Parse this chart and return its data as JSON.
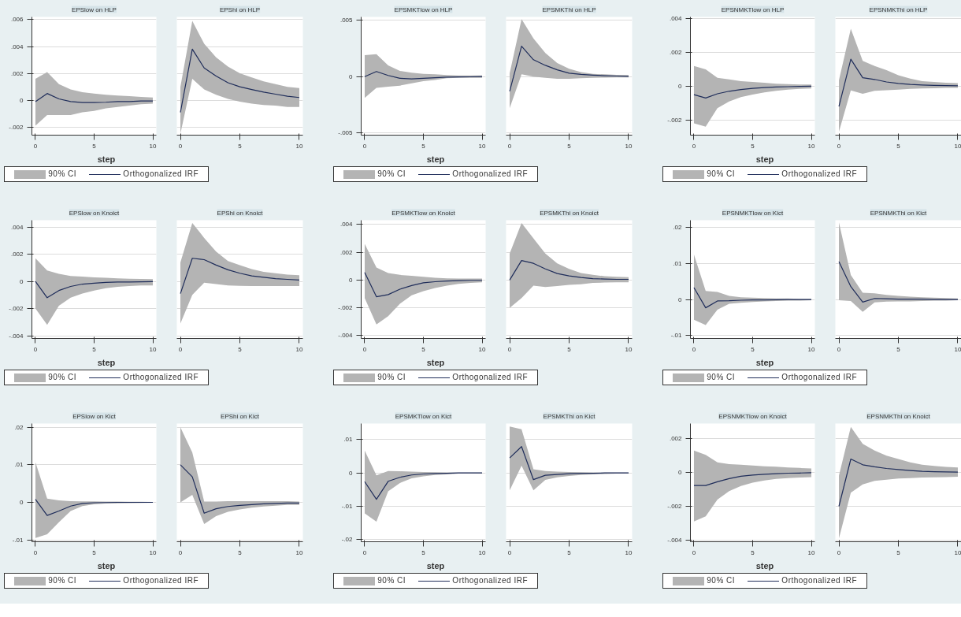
{
  "chart_data": [
    {
      "type": "line",
      "title": "EPSlow on HLP",
      "xlabel": "step",
      "legend": "bottom",
      "annotations": [
        "90% CI"
      ],
      "grid": "y",
      "x": [
        0,
        1,
        2,
        3,
        4,
        5,
        6,
        7,
        8,
        9,
        10
      ],
      "xlim": [
        -0.3,
        10.3
      ],
      "xticks": [
        0,
        5,
        10
      ],
      "ylim": [
        -0.0026,
        0.0062
      ],
      "yticks": [
        {
          "value": -0.002,
          "label": "-.002"
        },
        0,
        {
          "value": 0.002,
          "label": ".002"
        },
        {
          "value": 0.004,
          "label": ".004"
        },
        {
          "value": 0.006,
          "label": ".006"
        }
      ],
      "series": [
        {
          "name": "Orthogonalized IRF",
          "color": "#1f2d5a",
          "values": [
            -0.0001,
            0.0005,
            0.0001,
            -0.0001,
            -0.00017,
            -0.00017,
            -0.00015,
            -0.0001,
            -0.0001,
            -5e-05,
            -5e-05
          ],
          "lower": [
            -0.0019,
            -0.0011,
            -0.0011,
            -0.0011,
            -0.0009,
            -0.0008,
            -0.0006,
            -0.0005,
            -0.0004,
            -0.0003,
            -0.00025
          ],
          "upper": [
            0.0016,
            0.0021,
            0.0012,
            0.0008,
            0.0006,
            0.0005,
            0.0004,
            0.00035,
            0.0003,
            0.00025,
            0.0002
          ]
        }
      ]
    },
    {
      "type": "line",
      "title": "EPShi on HLP",
      "tick_labels": "x",
      "grid": "y",
      "x": [
        0,
        1,
        2,
        3,
        4,
        5,
        6,
        7,
        8,
        9,
        10
      ],
      "xlim": [
        -0.3,
        10.3
      ],
      "xticks": [
        0,
        5,
        10
      ],
      "ylim": [
        -0.0026,
        0.0062
      ],
      "yticks": [
        -0.002,
        0,
        0.002,
        0.004,
        0.006
      ],
      "series": [
        {
          "color": "#1f2d5a",
          "values": [
            -0.0009,
            0.0038,
            0.0024,
            0.0018,
            0.0013,
            0.001,
            0.0008,
            0.0006,
            0.00045,
            0.0003,
            0.0002
          ],
          "lower": [
            -0.0025,
            0.0016,
            0.0008,
            0.0004,
            0.0001,
            -0.0001,
            -0.00025,
            -0.00035,
            -0.0004,
            -0.0005,
            -0.0005
          ],
          "upper": [
            0.001,
            0.0059,
            0.0042,
            0.0032,
            0.0025,
            0.002,
            0.0017,
            0.0014,
            0.0012,
            0.001,
            0.0009
          ]
        }
      ]
    },
    {
      "type": "line",
      "title": "EPSMKTlow on HLP",
      "xlabel": "step",
      "legend": "bottom",
      "annotations": [
        "90% CI"
      ],
      "grid": "y",
      "x": [
        0,
        1,
        2,
        3,
        4,
        5,
        6,
        7,
        8,
        9,
        10
      ],
      "xlim": [
        -0.3,
        10.3
      ],
      "xticks": [
        0,
        5,
        10
      ],
      "ylim": [
        -0.0052,
        0.0053
      ],
      "yticks": [
        {
          "value": -0.005,
          "label": "-.005"
        },
        0,
        {
          "value": 0.005,
          "label": ".005"
        }
      ],
      "series": [
        {
          "name": "Orthogonalized IRF",
          "color": "#1f2d5a",
          "values": [
            0,
            0.00045,
            0.0001,
            -0.00015,
            -0.0002,
            -0.00015,
            -0.0001,
            -5e-05,
            -3e-05,
            -2e-05,
            0
          ],
          "lower": [
            -0.0019,
            -0.001,
            -0.0009,
            -0.0008,
            -0.0006,
            -0.0004,
            -0.0003,
            -0.00015,
            -0.0001,
            -0.0001,
            -0.0001
          ],
          "upper": [
            0.0019,
            0.002,
            0.001,
            0.0005,
            0.00035,
            0.00025,
            0.0002,
            0.00013,
            0.0001,
            0.0001,
            0.0001
          ]
        }
      ]
    },
    {
      "type": "line",
      "title": "EPSMKThi on HLP",
      "tick_labels": "x",
      "grid": "y",
      "x": [
        0,
        1,
        2,
        3,
        4,
        5,
        6,
        7,
        8,
        9,
        10
      ],
      "xlim": [
        -0.3,
        10.3
      ],
      "xticks": [
        0,
        5,
        10
      ],
      "ylim": [
        -0.0052,
        0.0053
      ],
      "yticks": [
        -0.005,
        0,
        0.005
      ],
      "series": [
        {
          "color": "#1f2d5a",
          "values": [
            -0.0013,
            0.0027,
            0.0015,
            0.001,
            0.0006,
            0.0003,
            0.0002,
            0.00013,
            8e-05,
            5e-05,
            3e-05
          ],
          "lower": [
            -0.0028,
            0.0002,
            0,
            -0.0001,
            -0.0002,
            -0.0002,
            -0.00015,
            -0.0001,
            -9e-05,
            -8e-05,
            -7e-05
          ],
          "upper": [
            0.0003,
            0.0051,
            0.0034,
            0.0021,
            0.0012,
            0.0007,
            0.0004,
            0.00025,
            0.0002,
            0.00015,
            0.00013
          ]
        }
      ]
    },
    {
      "type": "line",
      "title": "EPSNMKTlow on HLP",
      "xlabel": "step",
      "legend": "bottom",
      "annotations": [
        "90% CI"
      ],
      "grid": "y",
      "x": [
        0,
        1,
        2,
        3,
        4,
        5,
        6,
        7,
        8,
        9,
        10
      ],
      "xlim": [
        -0.3,
        10.3
      ],
      "xticks": [
        0,
        5,
        10
      ],
      "ylim": [
        -0.0029,
        0.0041
      ],
      "yticks": [
        {
          "value": -0.002,
          "label": "-.002"
        },
        0,
        {
          "value": 0.002,
          "label": ".002"
        },
        {
          "value": 0.004,
          "label": ".004"
        }
      ],
      "series": [
        {
          "name": "Orthogonalized IRF",
          "color": "#1f2d5a",
          "values": [
            -0.0005,
            -0.0007,
            -0.00045,
            -0.0003,
            -0.0002,
            -0.00013,
            -8e-05,
            -5e-05,
            -3e-05,
            -1e-05,
            0
          ],
          "lower": [
            -0.0022,
            -0.0024,
            -0.0013,
            -0.0009,
            -0.00065,
            -0.0005,
            -0.00037,
            -0.00028,
            -0.0002,
            -0.00016,
            -0.00013
          ],
          "upper": [
            0.0012,
            0.001,
            0.0005,
            0.0004,
            0.0003,
            0.00025,
            0.0002,
            0.00015,
            0.00012,
            0.0001,
            0.0001
          ]
        }
      ]
    },
    {
      "type": "line",
      "title": "EPSNMKThi on HLP",
      "tick_labels": "x",
      "grid": "y",
      "x": [
        0,
        1,
        2,
        3,
        4,
        5,
        6,
        7,
        8,
        9,
        10
      ],
      "xlim": [
        -0.3,
        10.3
      ],
      "xticks": [
        0,
        5,
        10
      ],
      "ylim": [
        -0.0029,
        0.0041
      ],
      "yticks": [
        -0.002,
        0,
        0.002,
        0.004
      ],
      "series": [
        {
          "color": "#1f2d5a",
          "values": [
            -0.0012,
            0.0016,
            0.0005,
            0.0004,
            0.00025,
            0.00016,
            0.0001,
            7e-05,
            5e-05,
            3e-05,
            2e-05
          ],
          "lower": [
            -0.0027,
            -0.00025,
            -0.00045,
            -0.00027,
            -0.00024,
            -0.0002,
            -0.00016,
            -0.00013,
            -0.00012,
            -0.0001,
            -0.0001
          ],
          "upper": [
            0.00035,
            0.0034,
            0.0015,
            0.0012,
            0.00095,
            0.00065,
            0.00045,
            0.0003,
            0.00025,
            0.0002,
            0.00018
          ]
        }
      ]
    },
    {
      "type": "line",
      "title": "EPSlow on Knoict",
      "xlabel": "step",
      "legend": "bottom",
      "annotations": [
        "90% CI"
      ],
      "grid": "y",
      "x": [
        0,
        1,
        2,
        3,
        4,
        5,
        6,
        7,
        8,
        9,
        10
      ],
      "xlim": [
        -0.3,
        10.3
      ],
      "xticks": [
        0,
        5,
        10
      ],
      "ylim": [
        -0.0042,
        0.0045
      ],
      "yticks": [
        {
          "value": -0.004,
          "label": "-.004"
        },
        {
          "value": -0.002,
          "label": "-.002"
        },
        0,
        {
          "value": 0.002,
          "label": ".002"
        },
        {
          "value": 0.004,
          "label": ".004"
        }
      ],
      "series": [
        {
          "name": "Orthogonalized IRF",
          "color": "#1f2d5a",
          "values": [
            0,
            -0.0012,
            -0.00067,
            -0.00037,
            -0.0002,
            -0.00013,
            -7e-05,
            -5e-05,
            -4e-05,
            -3e-05,
            -2e-05
          ],
          "lower": [
            -0.002,
            -0.0032,
            -0.0018,
            -0.0012,
            -0.0009,
            -0.00067,
            -0.0005,
            -0.0004,
            -0.00035,
            -0.0003,
            -0.0003
          ],
          "upper": [
            0.0017,
            0.0008,
            0.00055,
            0.0004,
            0.00035,
            0.0003,
            0.00026,
            0.00022,
            0.0002,
            0.00018,
            0.00017
          ]
        }
      ]
    },
    {
      "type": "line",
      "title": "EPShi on Knoict",
      "tick_labels": "x",
      "grid": "y",
      "x": [
        0,
        1,
        2,
        3,
        4,
        5,
        6,
        7,
        8,
        9,
        10
      ],
      "xlim": [
        -0.3,
        10.3
      ],
      "xticks": [
        0,
        5,
        10
      ],
      "ylim": [
        -0.0042,
        0.0045
      ],
      "yticks": [
        -0.004,
        -0.002,
        0,
        0.002,
        0.004
      ],
      "series": [
        {
          "color": "#1f2d5a",
          "values": [
            -0.0009,
            0.0017,
            0.0016,
            0.0012,
            0.00085,
            0.0006,
            0.0004,
            0.0003,
            0.0002,
            0.00015,
            0.0001
          ],
          "lower": [
            -0.0031,
            -0.001,
            -0.0001,
            -0.0002,
            -0.0003,
            -0.00033,
            -0.00035,
            -0.00035,
            -0.00035,
            -0.00035,
            -0.00035
          ],
          "upper": [
            0.0014,
            0.0043,
            0.0032,
            0.0022,
            0.0015,
            0.0012,
            0.0009,
            0.0007,
            0.0006,
            0.0005,
            0.00045
          ]
        }
      ]
    },
    {
      "type": "line",
      "title": "EPSMKTlow on Knoict",
      "xlabel": "step",
      "legend": "bottom",
      "annotations": [
        "90% CI"
      ],
      "grid": "y",
      "x": [
        0,
        1,
        2,
        3,
        4,
        5,
        6,
        7,
        8,
        9,
        10
      ],
      "xlim": [
        -0.3,
        10.3
      ],
      "xticks": [
        0,
        5,
        10
      ],
      "ylim": [
        -0.0042,
        0.0043
      ],
      "yticks": [
        {
          "value": -0.004,
          "label": "-.004"
        },
        {
          "value": -0.002,
          "label": "-.002"
        },
        0,
        {
          "value": 0.002,
          "label": ".002"
        },
        {
          "value": 0.004,
          "label": ".004"
        }
      ],
      "series": [
        {
          "name": "Orthogonalized IRF",
          "color": "#1f2d5a",
          "values": [
            0.00055,
            -0.0012,
            -0.00105,
            -0.00066,
            -0.0004,
            -0.0002,
            -0.00012,
            -7e-05,
            -4e-05,
            -2e-05,
            -2e-05
          ],
          "lower": [
            -0.0013,
            -0.0032,
            -0.0026,
            -0.0017,
            -0.0011,
            -0.0008,
            -0.00057,
            -0.0004,
            -0.00027,
            -0.0002,
            -0.00016
          ],
          "upper": [
            0.0026,
            0.0009,
            0.0005,
            0.00037,
            0.0003,
            0.00023,
            0.00016,
            0.00012,
            0.0001,
            0.0001,
            0.0001
          ]
        }
      ]
    },
    {
      "type": "line",
      "title": "EPSMKThi on Knoict",
      "tick_labels": "x",
      "grid": "y",
      "x": [
        0,
        1,
        2,
        3,
        4,
        5,
        6,
        7,
        8,
        9,
        10
      ],
      "xlim": [
        -0.3,
        10.3
      ],
      "xticks": [
        0,
        5,
        10
      ],
      "ylim": [
        -0.0042,
        0.0043
      ],
      "yticks": [
        -0.004,
        -0.002,
        0,
        0.002,
        0.004
      ],
      "series": [
        {
          "color": "#1f2d5a",
          "values": [
            0,
            0.0014,
            0.0012,
            0.0008,
            0.00047,
            0.0003,
            0.00018,
            0.0001,
            7e-05,
            5e-05,
            5e-05
          ],
          "lower": [
            -0.002,
            -0.0013,
            -0.0004,
            -0.0005,
            -0.00043,
            -0.00035,
            -0.0003,
            -0.0002,
            -0.00018,
            -0.00016,
            -0.00016
          ],
          "upper": [
            0.0019,
            0.0041,
            0.003,
            0.0019,
            0.0012,
            0.0008,
            0.0005,
            0.00038,
            0.00027,
            0.00023,
            0.0002
          ]
        }
      ]
    },
    {
      "type": "line",
      "title": "EPSNMKTlow on Kict",
      "xlabel": "step",
      "legend": "bottom",
      "annotations": [
        "90% CI"
      ],
      "grid": "y",
      "x": [
        0,
        1,
        2,
        3,
        4,
        5,
        6,
        7,
        8,
        9,
        10
      ],
      "xlim": [
        -0.3,
        10.3
      ],
      "xticks": [
        0,
        5,
        10
      ],
      "ylim": [
        -0.0108,
        0.022
      ],
      "yticks": [
        {
          "value": -0.01,
          "label": "-.01"
        },
        0,
        {
          "value": 0.01,
          "label": ".01"
        },
        {
          "value": 0.02,
          "label": ".02"
        }
      ],
      "series": [
        {
          "name": "Orthogonalized IRF",
          "color": "#1f2d5a",
          "values": [
            0.0033,
            -0.0023,
            -0.0004,
            -0.00035,
            -0.0002,
            -0.0001,
            -0.0001,
            -5e-05,
            0,
            0,
            0
          ],
          "lower": [
            -0.0056,
            -0.0071,
            -0.0028,
            -0.0012,
            -0.0009,
            -0.0007,
            -0.0005,
            -0.0004,
            -0.0003,
            -0.0003,
            -0.0002
          ],
          "upper": [
            0.0125,
            0.0024,
            0.0021,
            0.001,
            0.0006,
            0.0005,
            0.0004,
            0.0003,
            0.0003,
            0.0002,
            0.0002
          ]
        }
      ]
    },
    {
      "type": "line",
      "title": "EPSNMKThi on Kict",
      "tick_labels": "x",
      "grid": "y",
      "x": [
        0,
        1,
        2,
        3,
        4,
        5,
        6,
        7,
        8,
        9,
        10
      ],
      "xlim": [
        -0.3,
        10.3
      ],
      "xticks": [
        0,
        5,
        10
      ],
      "ylim": [
        -0.0108,
        0.022
      ],
      "yticks": [
        -0.01,
        0,
        0.01,
        0.02
      ],
      "series": [
        {
          "color": "#1f2d5a",
          "values": [
            0.0105,
            0.0036,
            -0.0007,
            0.0003,
            0.0002,
            0.0001,
            0.0001,
            0.0001,
            0,
            0,
            0
          ],
          "lower": [
            -0.0002,
            -0.0004,
            -0.0034,
            -0.0008,
            -0.0006,
            -0.0005,
            -0.0005,
            -0.0004,
            -0.0003,
            -0.0003,
            -0.0002
          ],
          "upper": [
            0.0214,
            0.0068,
            0.0019,
            0.0017,
            0.0013,
            0.001,
            0.0008,
            0.0006,
            0.0005,
            0.0004,
            0.0003
          ]
        }
      ]
    },
    {
      "type": "line",
      "title": "EPSlow on Kict",
      "xlabel": "step",
      "legend": "bottom",
      "annotations": [
        "90% CI"
      ],
      "grid": "y",
      "x": [
        0,
        1,
        2,
        3,
        4,
        5,
        6,
        7,
        8,
        9,
        10
      ],
      "xlim": [
        -0.3,
        10.3
      ],
      "xticks": [
        0,
        5,
        10
      ],
      "ylim": [
        -0.0105,
        0.021
      ],
      "yticks": [
        {
          "value": -0.01,
          "label": "-.01"
        },
        0,
        {
          "value": 0.01,
          "label": ".01"
        },
        {
          "value": 0.02,
          "label": ".02"
        }
      ],
      "series": [
        {
          "name": "Orthogonalized IRF",
          "color": "#1f2d5a",
          "values": [
            0.0008,
            -0.0035,
            -0.0023,
            -0.001,
            -0.0003,
            -0.0001,
            -5e-05,
            0,
            0,
            0,
            0
          ],
          "lower": [
            -0.0095,
            -0.0085,
            -0.0053,
            -0.0023,
            -0.001,
            -0.0005,
            -0.0003,
            -0.00025,
            -0.0002,
            -0.00015,
            -0.0001
          ],
          "upper": [
            0.0107,
            0.001,
            0.0005,
            0.0003,
            0.00025,
            0.00025,
            0.0002,
            0.0002,
            0.00015,
            0.00015,
            0.0001
          ]
        }
      ]
    },
    {
      "type": "line",
      "title": "EPShi on Kict",
      "tick_labels": "x",
      "grid": "y",
      "x": [
        0,
        1,
        2,
        3,
        4,
        5,
        6,
        7,
        8,
        9,
        10
      ],
      "xlim": [
        -0.3,
        10.3
      ],
      "xticks": [
        0,
        5,
        10
      ],
      "ylim": [
        -0.0105,
        0.021
      ],
      "yticks": [
        -0.01,
        0,
        0.01,
        0.02
      ],
      "series": [
        {
          "color": "#1f2d5a",
          "values": [
            0.01,
            0.0068,
            -0.0029,
            -0.0017,
            -0.0011,
            -0.0008,
            -0.0006,
            -0.0004,
            -0.0003,
            -0.0002,
            -0.0002
          ],
          "lower": [
            0,
            0.002,
            -0.0058,
            -0.0037,
            -0.0025,
            -0.0019,
            -0.0014,
            -0.0011,
            -0.0009,
            -0.0007,
            -0.0007
          ],
          "upper": [
            0.02,
            0.0133,
            0.0002,
            0.0002,
            0.0003,
            0.0003,
            0.0003,
            0.0003,
            0.0003,
            0.0003,
            0.0002
          ]
        }
      ]
    },
    {
      "type": "line",
      "title": "EPSMKTlow on Kict",
      "xlabel": "step",
      "legend": "bottom",
      "annotations": [
        "90% CI"
      ],
      "grid": "y",
      "x": [
        0,
        1,
        2,
        3,
        4,
        5,
        6,
        7,
        8,
        9,
        10
      ],
      "xlim": [
        -0.3,
        10.3
      ],
      "xticks": [
        0,
        5,
        10
      ],
      "ylim": [
        -0.0206,
        0.0148
      ],
      "yticks": [
        {
          "value": -0.02,
          "label": "-.02"
        },
        {
          "value": -0.01,
          "label": "-.01"
        },
        0,
        {
          "value": 0.01,
          "label": ".01"
        }
      ],
      "series": [
        {
          "name": "Orthogonalized IRF",
          "color": "#1f2d5a",
          "values": [
            -0.0026,
            -0.0079,
            -0.0025,
            -0.0013,
            -0.0006,
            -0.0003,
            -0.00015,
            -0.0001,
            0,
            0,
            0
          ],
          "lower": [
            -0.0121,
            -0.0146,
            -0.0055,
            -0.003,
            -0.0016,
            -0.001,
            -0.0006,
            -0.0004,
            -0.0002,
            -0.00015,
            -0.0001
          ],
          "upper": [
            0.0067,
            -0.0007,
            0.0006,
            0.0005,
            0.0004,
            0.0003,
            0.0002,
            0.00015,
            0.00012,
            0.0001,
            0.0001
          ]
        }
      ]
    },
    {
      "type": "line",
      "title": "EPSMKThi on Kict",
      "tick_labels": "x",
      "grid": "y",
      "x": [
        0,
        1,
        2,
        3,
        4,
        5,
        6,
        7,
        8,
        9,
        10
      ],
      "xlim": [
        -0.3,
        10.3
      ],
      "xticks": [
        0,
        5,
        10
      ],
      "ylim": [
        -0.0206,
        0.0148
      ],
      "yticks": [
        -0.02,
        -0.01,
        0,
        0.01
      ],
      "series": [
        {
          "color": "#1f2d5a",
          "values": [
            0.0045,
            0.0079,
            -0.002,
            -0.0007,
            -0.00045,
            -0.0002,
            -0.0001,
            -0.0001,
            0,
            0,
            0
          ],
          "lower": [
            -0.0052,
            0.0022,
            -0.0052,
            -0.0021,
            -0.0013,
            -0.0009,
            -0.0006,
            -0.0004,
            -0.0003,
            -0.0002,
            -0.00015
          ],
          "upper": [
            0.0139,
            0.0131,
            0.0011,
            0.0006,
            0.0004,
            0.0003,
            0.0002,
            0.00015,
            0.00012,
            0.0001,
            0.0001
          ]
        }
      ]
    },
    {
      "type": "line",
      "title": "EPSNMKTlow on Knoict",
      "xlabel": "step",
      "legend": "bottom",
      "annotations": [
        "90% CI"
      ],
      "grid": "y",
      "x": [
        0,
        1,
        2,
        3,
        4,
        5,
        6,
        7,
        8,
        9,
        10
      ],
      "xlim": [
        -0.3,
        10.3
      ],
      "xticks": [
        0,
        5,
        10
      ],
      "ylim": [
        -0.0041,
        0.0029
      ],
      "yticks": [
        {
          "value": -0.004,
          "label": "-.004"
        },
        {
          "value": -0.002,
          "label": "-.002"
        },
        0,
        {
          "value": 0.002,
          "label": ".002"
        }
      ],
      "series": [
        {
          "name": "Orthogonalized IRF",
          "color": "#1f2d5a",
          "values": [
            -0.00077,
            -0.00077,
            -0.00055,
            -0.00036,
            -0.00022,
            -0.00015,
            -0.0001,
            -7e-05,
            -4e-05,
            -3e-05,
            -1e-05
          ],
          "lower": [
            -0.0029,
            -0.0026,
            -0.0016,
            -0.0011,
            -0.0008,
            -0.0006,
            -0.00047,
            -0.00038,
            -0.00033,
            -0.0003,
            -0.00027
          ],
          "upper": [
            0.0013,
            0.00105,
            0.0006,
            0.0005,
            0.00046,
            0.00041,
            0.00037,
            0.00034,
            0.0003,
            0.00027,
            0.00024
          ]
        }
      ]
    },
    {
      "type": "line",
      "title": "EPSNMKThi on Knoict",
      "tick_labels": "x",
      "grid": "y",
      "x": [
        0,
        1,
        2,
        3,
        4,
        5,
        6,
        7,
        8,
        9,
        10
      ],
      "xlim": [
        -0.3,
        10.3
      ],
      "xticks": [
        0,
        5,
        10
      ],
      "ylim": [
        -0.0041,
        0.0029
      ],
      "yticks": [
        -0.004,
        -0.002,
        0,
        0.002
      ],
      "series": [
        {
          "color": "#1f2d5a",
          "values": [
            -0.002,
            0.0008,
            0.00046,
            0.00034,
            0.00024,
            0.00018,
            0.00012,
            7e-05,
            5e-05,
            4e-05,
            2e-05
          ],
          "lower": [
            -0.0039,
            -0.0012,
            -0.0007,
            -0.0005,
            -0.00043,
            -0.00036,
            -0.00033,
            -0.0003,
            -0.00028,
            -0.00027,
            -0.00025
          ],
          "upper": [
            -0.00018,
            0.0027,
            0.0017,
            0.0013,
            0.001,
            0.0008,
            0.0006,
            0.00046,
            0.00039,
            0.00033,
            0.0003
          ]
        }
      ]
    }
  ]
}
